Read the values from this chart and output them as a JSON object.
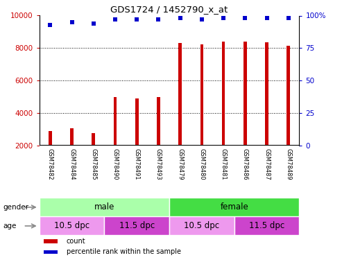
{
  "title": "GDS1724 / 1452790_x_at",
  "samples": [
    "GSM78482",
    "GSM78484",
    "GSM78485",
    "GSM78490",
    "GSM78491",
    "GSM78493",
    "GSM78479",
    "GSM78480",
    "GSM78481",
    "GSM78486",
    "GSM78487",
    "GSM78489"
  ],
  "counts": [
    2900,
    3100,
    2800,
    5000,
    4900,
    5000,
    8300,
    8250,
    8400,
    8400,
    8350,
    8150
  ],
  "percentiles": [
    93,
    95,
    94,
    97,
    97,
    97,
    98,
    97,
    98,
    98,
    98,
    98
  ],
  "bar_color": "#cc0000",
  "dot_color": "#0000cc",
  "ylim_left": [
    2000,
    10000
  ],
  "ylim_right": [
    0,
    100
  ],
  "yticks_left": [
    2000,
    4000,
    6000,
    8000,
    10000
  ],
  "yticks_right": [
    0,
    25,
    50,
    75,
    100
  ],
  "gender_labels": [
    {
      "label": "male",
      "start": 0,
      "end": 6,
      "color": "#aaffaa"
    },
    {
      "label": "female",
      "start": 6,
      "end": 12,
      "color": "#44dd44"
    }
  ],
  "age_labels": [
    {
      "label": "10.5 dpc",
      "start": 0,
      "end": 3,
      "color": "#ee99ee"
    },
    {
      "label": "11.5 dpc",
      "start": 3,
      "end": 6,
      "color": "#cc44cc"
    },
    {
      "label": "10.5 dpc",
      "start": 6,
      "end": 9,
      "color": "#ee99ee"
    },
    {
      "label": "11.5 dpc",
      "start": 9,
      "end": 12,
      "color": "#cc44cc"
    }
  ],
  "legend_items": [
    {
      "label": "count",
      "color": "#cc0000"
    },
    {
      "label": "percentile rank within the sample",
      "color": "#0000cc"
    }
  ],
  "bar_width": 0.15,
  "left_color": "#cc0000",
  "right_color": "#0000cc",
  "bg_color": "#ffffff",
  "xtick_bg": "#c0c0c0",
  "grid_style": ":",
  "grid_color": "#000000",
  "grid_lw": 0.7
}
